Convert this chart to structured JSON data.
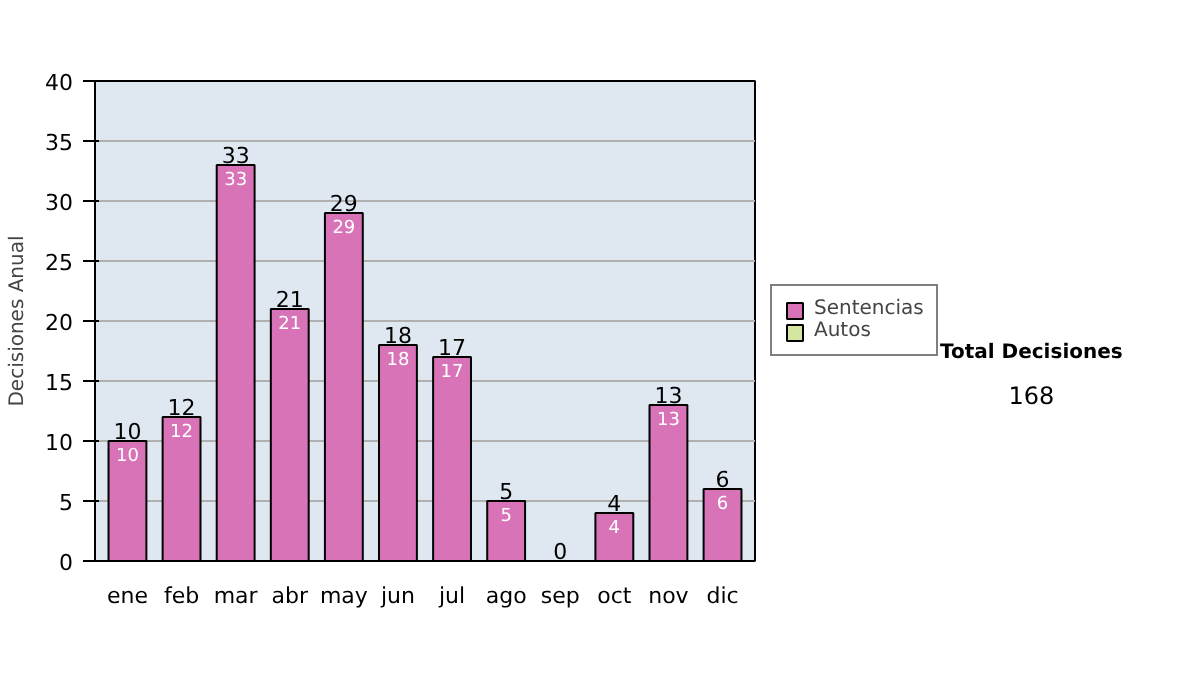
{
  "chart_data": {
    "type": "bar",
    "stacked": true,
    "categories": [
      "ene",
      "feb",
      "mar",
      "abr",
      "may",
      "jun",
      "jul",
      "ago",
      "sep",
      "oct",
      "nov",
      "dic"
    ],
    "series": [
      {
        "name": "Sentencias",
        "color": "#d873b8",
        "values": [
          10,
          12,
          33,
          21,
          29,
          18,
          17,
          5,
          0,
          4,
          13,
          6
        ],
        "value_labels": [
          "10",
          "12",
          "33",
          "21",
          "29",
          "18",
          "17",
          "5",
          null,
          "4",
          "13",
          "6"
        ]
      },
      {
        "name": "Autos",
        "color": "#d4e6a0",
        "values": [
          0,
          0,
          0,
          0,
          0,
          0,
          0,
          0,
          0,
          0,
          0,
          0
        ]
      }
    ],
    "totals": [
      "10",
      "12",
      "33",
      "21",
      "29",
      "18",
      "17",
      "5",
      "0",
      "4",
      "13",
      "6"
    ],
    "ylabel": "Decisiones Anual",
    "ylim": [
      0,
      40
    ],
    "yticks": [
      0,
      5,
      10,
      15,
      20,
      25,
      30,
      35,
      40
    ],
    "grid": "y",
    "legend": "right",
    "annotations": [
      "Total Decisiones",
      "168"
    ]
  }
}
